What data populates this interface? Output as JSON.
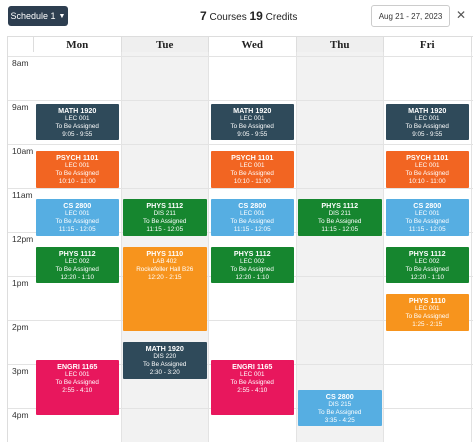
{
  "toolbar": {
    "schedule_label": "Schedule 1",
    "courses_count": "7",
    "courses_label": "Courses",
    "credits_count": "19",
    "credits_label": "Credits",
    "date_range": "Aug 21 - 27, 2023",
    "close_icon": "close-icon",
    "caret_icon": "caret-down-icon"
  },
  "days": [
    "Mon",
    "Tue",
    "Wed",
    "Thu",
    "Fri"
  ],
  "hours": [
    "8am",
    "9am",
    "10am",
    "11am",
    "12pm",
    "1pm",
    "2pm",
    "3pm",
    "4pm"
  ],
  "colors": {
    "MATH": "#2f4a5a",
    "PSYCH": "#f26522",
    "CS": "#56aee2",
    "PHYS1112": "#16862f",
    "PHYS1110": "#f7941d",
    "ENGRI": "#e8175d"
  },
  "events": [
    {
      "day": 0,
      "start": "9:05",
      "end": "9:55",
      "title": "MATH 1920",
      "type": "LEC 001",
      "loc": "To Be Assigned",
      "time": "9:05 - 9:55",
      "color": "#2f4a5a"
    },
    {
      "day": 2,
      "start": "9:05",
      "end": "9:55",
      "title": "MATH 1920",
      "type": "LEC 001",
      "loc": "To Be Assigned",
      "time": "9:05 - 9:55",
      "color": "#2f4a5a"
    },
    {
      "day": 4,
      "start": "9:05",
      "end": "9:55",
      "title": "MATH 1920",
      "type": "LEC 001",
      "loc": "To Be Assigned",
      "time": "9:05 - 9:55",
      "color": "#2f4a5a"
    },
    {
      "day": 0,
      "start": "10:10",
      "end": "11:00",
      "title": "PSYCH 1101",
      "type": "LEC 001",
      "loc": "To Be Assigned",
      "time": "10:10 - 11:00",
      "color": "#f26522"
    },
    {
      "day": 2,
      "start": "10:10",
      "end": "11:00",
      "title": "PSYCH 1101",
      "type": "LEC 001",
      "loc": "To Be Assigned",
      "time": "10:10 - 11:00",
      "color": "#f26522"
    },
    {
      "day": 4,
      "start": "10:10",
      "end": "11:00",
      "title": "PSYCH 1101",
      "type": "LEC 001",
      "loc": "To Be Assigned",
      "time": "10:10 - 11:00",
      "color": "#f26522"
    },
    {
      "day": 0,
      "start": "11:15",
      "end": "12:05",
      "title": "CS 2800",
      "type": "LEC 001",
      "loc": "To Be Assigned",
      "time": "11:15 - 12:05",
      "color": "#56aee2"
    },
    {
      "day": 2,
      "start": "11:15",
      "end": "12:05",
      "title": "CS 2800",
      "type": "LEC 001",
      "loc": "To Be Assigned",
      "time": "11:15 - 12:05",
      "color": "#56aee2"
    },
    {
      "day": 4,
      "start": "11:15",
      "end": "12:05",
      "title": "CS 2800",
      "type": "LEC 001",
      "loc": "To Be Assigned",
      "time": "11:15 - 12:05",
      "color": "#56aee2"
    },
    {
      "day": 1,
      "start": "11:15",
      "end": "12:05",
      "title": "PHYS 1112",
      "type": "DIS 211",
      "loc": "To Be Assigned",
      "time": "11:15 - 12:05",
      "color": "#16862f"
    },
    {
      "day": 3,
      "start": "11:15",
      "end": "12:05",
      "title": "PHYS 1112",
      "type": "DIS 211",
      "loc": "To Be Assigned",
      "time": "11:15 - 12:05",
      "color": "#16862f"
    },
    {
      "day": 0,
      "start": "12:20",
      "end": "13:10",
      "title": "PHYS 1112",
      "type": "LEC 002",
      "loc": "To Be Assigned",
      "time": "12:20 - 1:10",
      "color": "#16862f"
    },
    {
      "day": 2,
      "start": "12:20",
      "end": "13:10",
      "title": "PHYS 1112",
      "type": "LEC 002",
      "loc": "To Be Assigned",
      "time": "12:20 - 1:10",
      "color": "#16862f"
    },
    {
      "day": 4,
      "start": "12:20",
      "end": "13:10",
      "title": "PHYS 1112",
      "type": "LEC 002",
      "loc": "To Be Assigned",
      "time": "12:20 - 1:10",
      "color": "#16862f"
    },
    {
      "day": 1,
      "start": "12:20",
      "end": "14:15",
      "title": "PHYS 1110",
      "type": "LAB 402",
      "loc": "Rockefeller Hall B26",
      "time": "12:20 - 2:15",
      "color": "#f7941d"
    },
    {
      "day": 4,
      "start": "13:25",
      "end": "14:15",
      "title": "PHYS 1110",
      "type": "LEC 001",
      "loc": "To Be Assigned",
      "time": "1:25 - 2:15",
      "color": "#f7941d"
    },
    {
      "day": 1,
      "start": "14:30",
      "end": "15:20",
      "title": "MATH 1920",
      "type": "DIS 220",
      "loc": "To Be Assigned",
      "time": "2:30 - 3:20",
      "color": "#2f4a5a"
    },
    {
      "day": 0,
      "start": "14:55",
      "end": "16:10",
      "title": "ENGRI 1165",
      "type": "LEC 001",
      "loc": "To Be Assigned",
      "time": "2:55 - 4:10",
      "color": "#e8175d"
    },
    {
      "day": 2,
      "start": "14:55",
      "end": "16:10",
      "title": "ENGRI 1165",
      "type": "LEC 001",
      "loc": "To Be Assigned",
      "time": "2:55 - 4:10",
      "color": "#e8175d"
    },
    {
      "day": 3,
      "start": "15:35",
      "end": "16:25",
      "title": "CS 2800",
      "type": "DIS 215",
      "loc": "To Be Assigned",
      "time": "3:35 - 4:25",
      "color": "#56aee2"
    }
  ]
}
